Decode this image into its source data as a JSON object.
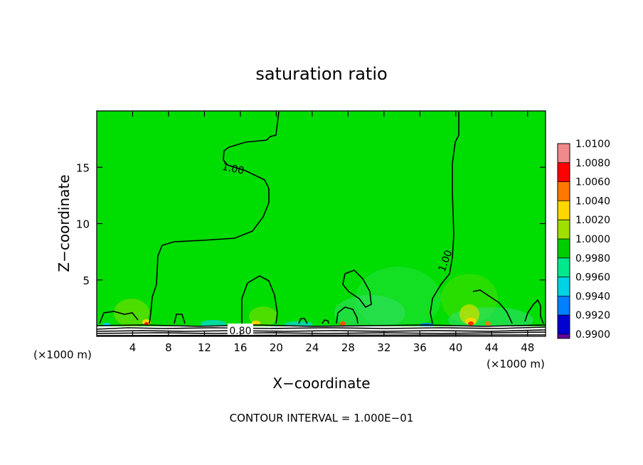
{
  "chart_data": {
    "type": "heatmap",
    "title": "saturation ratio",
    "xlabel": "X−coordinate",
    "ylabel": "Z−coordinate",
    "x_unit_left": "(×1000 m)",
    "x_unit_right": "(×1000 m)",
    "xlim": [
      0,
      50
    ],
    "ylim": [
      0,
      20
    ],
    "x_ticks": [
      4,
      8,
      12,
      16,
      20,
      24,
      28,
      32,
      36,
      40,
      44,
      48
    ],
    "x_tick_labels": [
      "4",
      "8",
      "12",
      "16",
      "20",
      "24",
      "28",
      "32",
      "36",
      "40",
      "44",
      "48"
    ],
    "y_ticks": [
      5,
      10,
      15
    ],
    "y_tick_labels": [
      "5",
      "10",
      "15"
    ],
    "contour_labels": [
      {
        "text": "1.00",
        "x": 15.2,
        "y": 14.9
      },
      {
        "text": "1.00",
        "x": 38.8,
        "y": 6.7
      },
      {
        "text": "0.80",
        "x": 16.0,
        "y": 0.5
      }
    ],
    "footer": "CONTOUR INTERVAL = 1.000E−01",
    "colorbar": {
      "levels": [
        "1.0100",
        "1.0080",
        "1.0060",
        "1.0040",
        "1.0020",
        "1.0000",
        "0.9980",
        "0.9960",
        "0.9940",
        "0.9920",
        "0.9900"
      ],
      "colors": [
        "#f08a8a",
        "#ff0000",
        "#ff7800",
        "#ffd700",
        "#a0e000",
        "#00cd00",
        "#00e88c",
        "#00d2e6",
        "#0080ff",
        "#0000d0",
        "#6400a0"
      ]
    },
    "background_color": "#00dd00"
  }
}
